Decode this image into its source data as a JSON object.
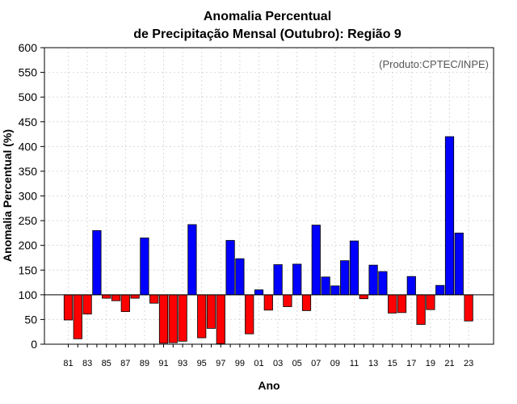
{
  "chart_data": {
    "type": "bar",
    "title_line1": "Anomalia Percentual",
    "title_line2": "de Precipitação Mensal (Outubro): Região 9",
    "xlabel": "Ano",
    "ylabel": "Anomalia Percentual (%)",
    "credit": "(Produto:CPTEC/INPE)",
    "baseline": 100,
    "ylim": [
      0,
      600
    ],
    "yticks": [
      0,
      50,
      100,
      150,
      200,
      250,
      300,
      350,
      400,
      450,
      500,
      550,
      600
    ],
    "grid": true,
    "colors": {
      "above": "#0000ff",
      "below": "#ff0000"
    },
    "categories": [
      "81",
      "82",
      "83",
      "84",
      "85",
      "86",
      "87",
      "88",
      "89",
      "90",
      "91",
      "92",
      "93",
      "94",
      "95",
      "96",
      "97",
      "98",
      "99",
      "00",
      "01",
      "02",
      "03",
      "04",
      "05",
      "06",
      "07",
      "08",
      "09",
      "10",
      "11",
      "12",
      "13",
      "14",
      "15",
      "16",
      "17",
      "18",
      "19",
      "20",
      "21",
      "22",
      "23"
    ],
    "xticklabels": [
      "81",
      "83",
      "85",
      "87",
      "89",
      "91",
      "93",
      "95",
      "97",
      "99",
      "01",
      "03",
      "05",
      "07",
      "09",
      "11",
      "13",
      "15",
      "17",
      "19",
      "21",
      "23"
    ],
    "values": [
      49,
      11,
      61,
      230,
      93,
      88,
      66,
      93,
      215,
      83,
      2,
      3,
      6,
      242,
      13,
      32,
      1,
      210,
      173,
      21,
      110,
      69,
      161,
      76,
      162,
      68,
      241,
      136,
      118,
      169,
      209,
      92,
      160,
      147,
      63,
      64,
      137,
      40,
      70,
      119,
      420,
      225,
      47
    ]
  }
}
